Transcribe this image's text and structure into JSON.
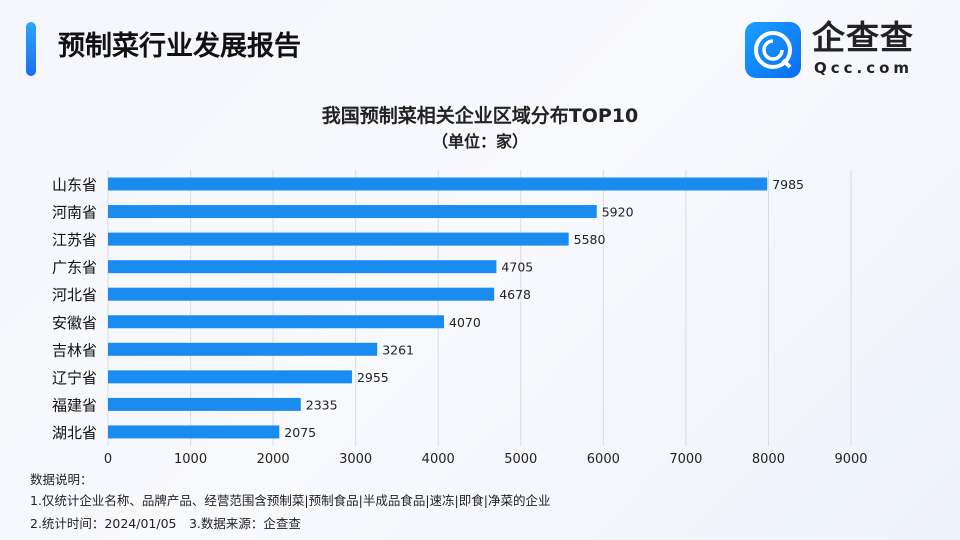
{
  "header": {
    "title": "预制菜行业发展报告",
    "brand_name": "企查查",
    "brand_url": "Qcc.com"
  },
  "chart_data": {
    "type": "bar",
    "orientation": "horizontal",
    "title": "我国预制菜相关企业区域分布TOP10",
    "subtitle": "（单位：家）",
    "categories": [
      "山东省",
      "河南省",
      "江苏省",
      "广东省",
      "河北省",
      "安徽省",
      "吉林省",
      "辽宁省",
      "福建省",
      "湖北省"
    ],
    "values": [
      7985,
      5920,
      5580,
      4705,
      4678,
      4070,
      3261,
      2955,
      2335,
      2075
    ],
    "xlim": [
      0,
      9000
    ],
    "xticks": [
      0,
      1000,
      2000,
      3000,
      4000,
      5000,
      6000,
      7000,
      8000,
      9000
    ],
    "grid": true,
    "color": "#1a8cf0"
  },
  "notes": {
    "label": "数据说明：",
    "line1": "1.仅统计企业名称、品牌产品、经营范围含预制菜|预制食品|半成品食品|速冻|即食|净菜的企业",
    "line2": "2.统计时间：2024/01/05　3.数据来源：企查查"
  }
}
